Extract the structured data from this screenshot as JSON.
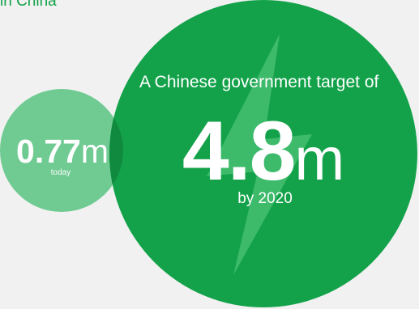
{
  "header": {
    "text": "in China"
  },
  "colors": {
    "background": "#f1f1f1",
    "big_circle": "#13a24a",
    "small_circle": "#6fcb92",
    "overlap": "#0f8a3e",
    "bolt": "#4ec177",
    "text": "#ffffff"
  },
  "today": {
    "value": "0.77",
    "unit": "m",
    "caption": "today"
  },
  "target": {
    "caption": "A Chinese government target of",
    "value": "4.8",
    "unit": "m",
    "subcaption": "by 2020",
    "bolt_icon": "lightning-bolt-icon"
  }
}
